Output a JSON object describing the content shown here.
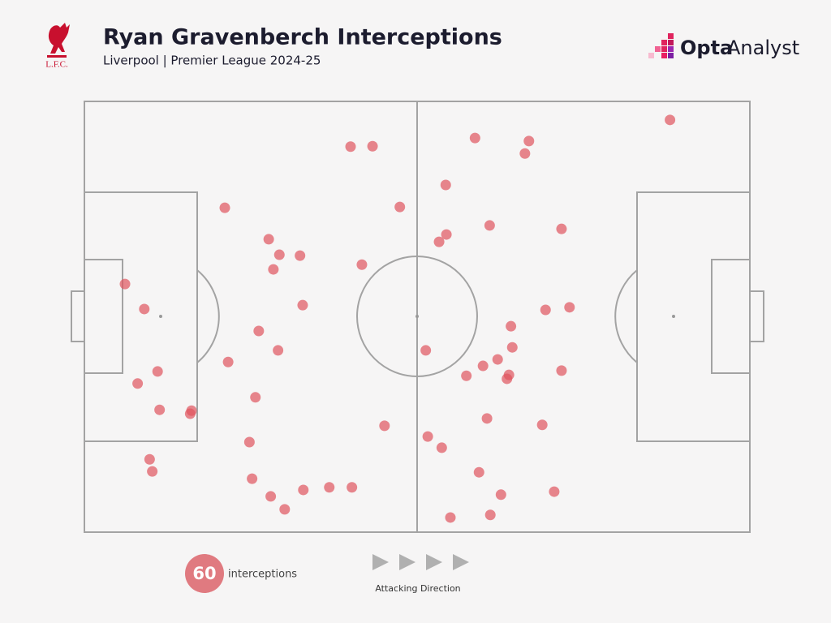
{
  "branding": {
    "club": "L.F.C.",
    "publisher_bold": "Opta",
    "publisher_light": "Analyst"
  },
  "chart_data": {
    "type": "scatter",
    "title": "Ryan Gravenberch Interceptions",
    "subtitle": "Liverpool | Premier League 2024-25",
    "color": "#e0545e",
    "xlim": [
      0,
      100
    ],
    "ylim": [
      0,
      100
    ],
    "x": [
      88.0,
      58.7,
      66.8,
      66.2,
      40.0,
      43.3,
      54.3,
      21.1,
      47.4,
      60.9,
      71.7,
      27.7,
      54.4,
      53.3,
      29.3,
      32.4,
      28.4,
      41.7,
      6.1,
      9.0,
      32.8,
      69.3,
      72.9,
      64.1,
      26.2,
      64.3,
      29.1,
      51.3,
      62.1,
      21.6,
      59.9,
      11.0,
      71.7,
      57.4,
      63.8,
      63.5,
      8.0,
      25.7,
      11.3,
      16.1,
      15.9,
      60.5,
      45.1,
      68.8,
      51.6,
      24.8,
      53.7,
      9.8,
      10.2,
      59.3,
      25.2,
      62.6,
      70.6,
      32.9,
      36.8,
      40.2,
      28.0,
      30.1,
      55.0,
      61.0
    ],
    "y": [
      95.7,
      91.5,
      90.8,
      87.9,
      89.5,
      89.6,
      80.6,
      75.3,
      75.5,
      71.2,
      70.4,
      68.0,
      69.1,
      67.4,
      64.4,
      64.2,
      61.0,
      62.1,
      57.6,
      51.8,
      52.7,
      51.6,
      52.2,
      47.8,
      46.7,
      42.9,
      42.2,
      42.2,
      40.1,
      39.5,
      38.6,
      37.3,
      37.5,
      36.3,
      36.5,
      35.6,
      34.5,
      31.3,
      28.4,
      28.2,
      27.5,
      26.4,
      24.7,
      24.9,
      22.2,
      20.9,
      19.6,
      16.9,
      14.1,
      13.9,
      12.4,
      8.7,
      9.4,
      9.8,
      10.4,
      10.4,
      8.3,
      5.3,
      3.4,
      4.0
    ],
    "count": 60,
    "count_label": "interceptions",
    "direction_label": "Attacking Direction"
  }
}
